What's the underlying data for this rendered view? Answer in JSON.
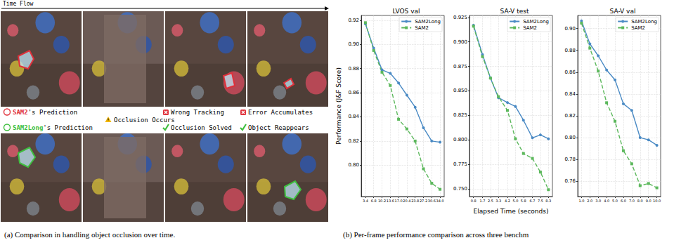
{
  "panel_a": {
    "time_label": "Time Flow",
    "sam2": {
      "model": "SAM2",
      "suffix": "'s Prediction",
      "notes": [
        "Wrong Tracking",
        "Error Accumulates"
      ]
    },
    "occlusion": "Occlusion Occurs",
    "sam2long": {
      "model": "SAM2Long",
      "suffix": "'s Prediction",
      "notes": [
        "Occlusion Solved",
        "Object Reappears"
      ]
    },
    "caption": "(a) Comparison in handling object occlusion over time."
  },
  "panel_b_caption": "(b) Per-frame performance comparison across three benchm",
  "chart_data": [
    {
      "type": "line",
      "title": "LVOS val",
      "ylabel": "Performance (J&F Score)",
      "x": [
        3.4,
        6.8,
        10.2,
        13.6,
        17.0,
        20.4,
        23.8,
        27.2,
        30.6,
        34.0
      ],
      "xlim": [
        1.7,
        35.7
      ],
      "xticks": [
        3.4,
        6.8,
        10.2,
        13.6,
        {
          "value": 17.0,
          "label": "17.0"
        },
        20.4,
        23.8,
        27.2,
        30.6,
        {
          "value": 34.0,
          "label": "34.0"
        }
      ],
      "ylim": [
        0.774,
        0.924
      ],
      "yticks": [
        {
          "value": 0.8,
          "label": "0.80"
        },
        0.82,
        0.84,
        0.86,
        0.88,
        {
          "value": 0.9,
          "label": "0.90"
        },
        0.92
      ],
      "grid": true,
      "legend": "upper right",
      "series": [
        {
          "name": "SAM2Long",
          "color": "#4a8ac4",
          "marker": "circle",
          "line_style": "solid",
          "values": [
            0.917,
            0.897,
            0.879,
            0.876,
            0.868,
            0.858,
            0.848,
            0.831,
            0.82,
            0.819
          ]
        },
        {
          "name": "SAM2",
          "color": "#5cb85c",
          "marker": "square",
          "line_style": "dashed",
          "values": [
            0.918,
            0.895,
            0.877,
            0.866,
            0.838,
            0.83,
            0.82,
            0.797,
            0.785,
            0.78
          ]
        }
      ]
    },
    {
      "type": "line",
      "title": "SA-V test",
      "xlabel": "Elapsed Time (seconds)",
      "x": [
        0.8,
        1.7,
        2.5,
        3.3,
        4.2,
        5.0,
        5.8,
        6.7,
        7.5,
        8.3
      ],
      "xlim": [
        0.4,
        8.7
      ],
      "xticks": [
        0.8,
        1.7,
        2.5,
        3.3,
        4.2,
        {
          "value": 5.0,
          "label": "5.0"
        },
        5.8,
        6.7,
        7.5,
        8.3
      ],
      "ylim": [
        0.742,
        0.927
      ],
      "yticks": [
        {
          "value": 0.75,
          "label": "0.750"
        },
        0.775,
        {
          "value": 0.8,
          "label": "0.800"
        },
        0.825,
        {
          "value": 0.85,
          "label": "0.850"
        },
        0.875,
        {
          "value": 0.9,
          "label": "0.900"
        },
        0.925
      ],
      "grid": true,
      "legend": "upper right",
      "series": [
        {
          "name": "SAM2Long",
          "color": "#4a8ac4",
          "marker": "circle",
          "line_style": "solid",
          "values": [
            0.917,
            0.887,
            0.863,
            0.843,
            0.838,
            0.834,
            0.82,
            0.802,
            0.805,
            0.801
          ]
        },
        {
          "name": "SAM2",
          "color": "#5cb85c",
          "marker": "square",
          "line_style": "dashed",
          "values": [
            0.916,
            0.885,
            0.863,
            0.844,
            0.83,
            0.801,
            0.786,
            0.781,
            0.767,
            0.749
          ]
        }
      ]
    },
    {
      "type": "line",
      "title": "SA-V val",
      "x": [
        1.0,
        2.0,
        3.0,
        4.0,
        5.0,
        6.0,
        7.0,
        8.0,
        9.0,
        10.0
      ],
      "xlim": [
        0.55,
        10.45
      ],
      "xticks": [
        {
          "value": 1.0,
          "label": "1.0"
        },
        {
          "value": 2.0,
          "label": "2.0"
        },
        {
          "value": 3.0,
          "label": "3.0"
        },
        {
          "value": 4.0,
          "label": "4.0"
        },
        {
          "value": 5.0,
          "label": "5.0"
        },
        {
          "value": 6.0,
          "label": "6.0"
        },
        {
          "value": 7.0,
          "label": "7.0"
        },
        {
          "value": 8.0,
          "label": "8.0"
        },
        {
          "value": 9.0,
          "label": "9.0"
        },
        {
          "value": 10.0,
          "label": "10.0"
        }
      ],
      "ylim": [
        0.746,
        0.912
      ],
      "yticks": [
        0.76,
        0.78,
        {
          "value": 0.8,
          "label": "0.80"
        },
        0.82,
        0.84,
        0.86,
        0.88,
        {
          "value": 0.9,
          "label": "0.90"
        }
      ],
      "grid": true,
      "legend": "upper right",
      "series": [
        {
          "name": "SAM2Long",
          "color": "#4a8ac4",
          "marker": "circle",
          "line_style": "solid",
          "values": [
            0.907,
            0.886,
            0.875,
            0.862,
            0.853,
            0.831,
            0.825,
            0.8,
            0.798,
            0.793
          ]
        },
        {
          "name": "SAM2",
          "color": "#5cb85c",
          "marker": "square",
          "line_style": "dashed",
          "values": [
            0.905,
            0.882,
            0.861,
            0.832,
            0.815,
            0.788,
            0.776,
            0.756,
            0.758,
            0.754
          ]
        }
      ]
    }
  ]
}
